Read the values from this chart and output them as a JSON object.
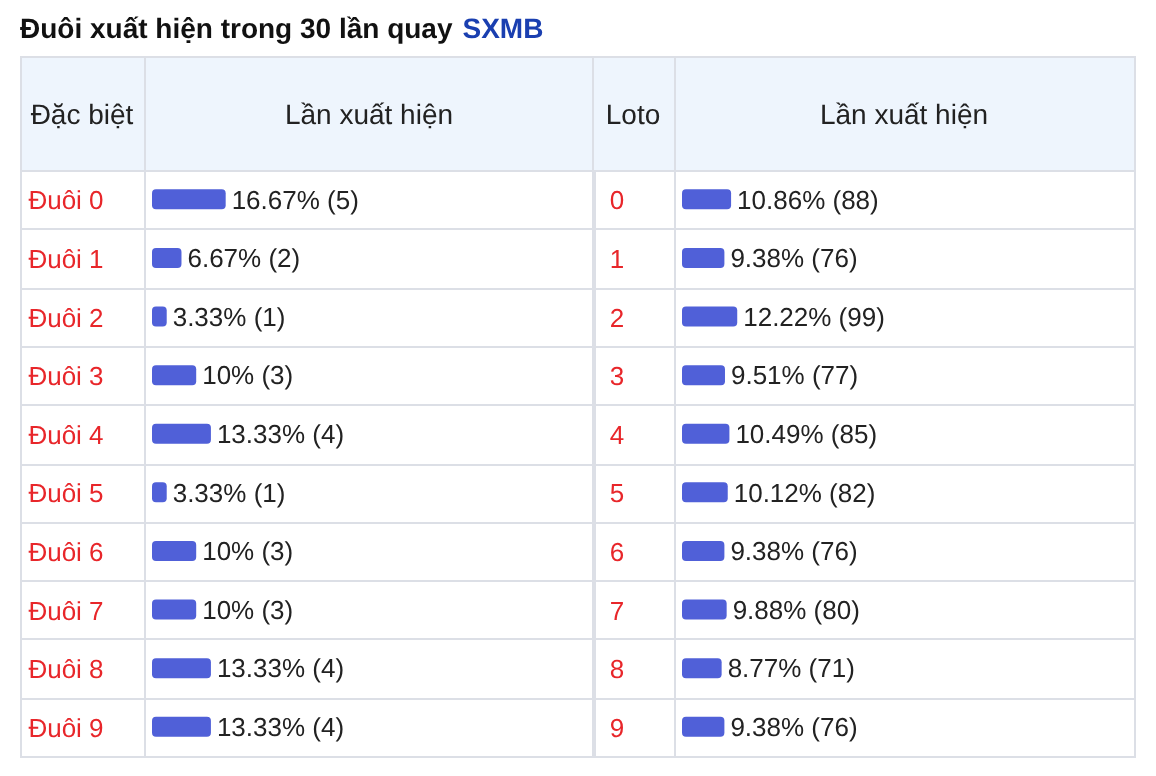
{
  "chart_data": [
    {
      "type": "bar",
      "orientation": "horizontal",
      "title": "Đuôi xuất hiện trong 30 lần quay",
      "subtitle": "SXMB",
      "ylabel": "Đặc biệt",
      "xlabel": "Lần xuất hiện",
      "categories": [
        "Đuôi 0",
        "Đuôi 1",
        "Đuôi 2",
        "Đuôi 3",
        "Đuôi 4",
        "Đuôi 5",
        "Đuôi 6",
        "Đuôi 7",
        "Đuôi 8",
        "Đuôi 9"
      ],
      "values": [
        16.67,
        6.67,
        3.33,
        10,
        13.33,
        3.33,
        10,
        10,
        13.33,
        13.33
      ],
      "value_labels": [
        "16.67% (5)",
        "6.67% (2)",
        "3.33% (1)",
        "10% (3)",
        "13.33% (4)",
        "3.33% (1)",
        "10% (3)",
        "10% (3)",
        "13.33% (4)",
        "13.33% (4)"
      ],
      "color": "#5060d8",
      "xlim": [
        0,
        100
      ]
    },
    {
      "type": "bar",
      "orientation": "horizontal",
      "ylabel": "Loto",
      "xlabel": "Lần xuất hiện",
      "categories": [
        "0",
        "1",
        "2",
        "3",
        "4",
        "5",
        "6",
        "7",
        "8",
        "9"
      ],
      "values": [
        10.86,
        9.38,
        12.22,
        9.51,
        10.49,
        10.12,
        9.38,
        9.88,
        8.77,
        9.38
      ],
      "value_labels": [
        "10.86% (88)",
        "9.38% (76)",
        "12.22% (99)",
        "9.51% (77)",
        "10.49% (85)",
        "10.12% (82)",
        "9.38% (76)",
        "9.88% (80)",
        "8.77% (71)",
        "9.38% (76)"
      ],
      "color": "#5060d8",
      "xlim": [
        0,
        100
      ]
    }
  ]
}
